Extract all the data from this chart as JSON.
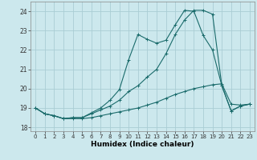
{
  "xlabel": "Humidex (Indice chaleur)",
  "background_color": "#cce8ed",
  "grid_color": "#aacdd4",
  "line_color": "#1a6b6b",
  "xlim": [
    -0.5,
    23.5
  ],
  "ylim": [
    17.8,
    24.5
  ],
  "yticks": [
    18,
    19,
    20,
    21,
    22,
    23,
    24
  ],
  "xticks": [
    0,
    1,
    2,
    3,
    4,
    5,
    6,
    7,
    8,
    9,
    10,
    11,
    12,
    13,
    14,
    15,
    16,
    17,
    18,
    19,
    20,
    21,
    22,
    23
  ],
  "series": [
    {
      "x": [
        0,
        1,
        2,
        3,
        4,
        5,
        6,
        7,
        8,
        9,
        10,
        11,
        12,
        13,
        14,
        15,
        16,
        17,
        18,
        19,
        20,
        21,
        22,
        23
      ],
      "y": [
        19.0,
        18.7,
        18.6,
        18.45,
        18.45,
        18.45,
        18.5,
        18.6,
        18.7,
        18.8,
        18.9,
        19.0,
        19.15,
        19.3,
        19.5,
        19.7,
        19.85,
        20.0,
        20.1,
        20.2,
        20.25,
        19.2,
        19.15,
        19.2
      ]
    },
    {
      "x": [
        0,
        1,
        2,
        3,
        4,
        5,
        6,
        7,
        8,
        9,
        10,
        11,
        12,
        13,
        14,
        15,
        16,
        17,
        18,
        19,
        20,
        21,
        22,
        23
      ],
      "y": [
        19.0,
        18.7,
        18.6,
        18.45,
        18.5,
        18.5,
        18.7,
        18.9,
        19.1,
        19.4,
        19.85,
        20.15,
        20.6,
        21.0,
        21.8,
        22.8,
        23.55,
        24.05,
        24.05,
        23.85,
        20.15,
        18.85,
        19.1,
        19.2
      ]
    },
    {
      "x": [
        0,
        1,
        2,
        3,
        4,
        5,
        6,
        7,
        8,
        9,
        10,
        11,
        12,
        13,
        14,
        15,
        16,
        17,
        18,
        19,
        20,
        21,
        22,
        23
      ],
      "y": [
        19.0,
        18.7,
        18.6,
        18.45,
        18.5,
        18.5,
        18.75,
        19.0,
        19.4,
        19.95,
        21.5,
        22.8,
        22.55,
        22.35,
        22.5,
        23.3,
        24.05,
        24.0,
        22.75,
        22.0,
        20.15,
        18.85,
        19.1,
        19.2
      ]
    }
  ]
}
